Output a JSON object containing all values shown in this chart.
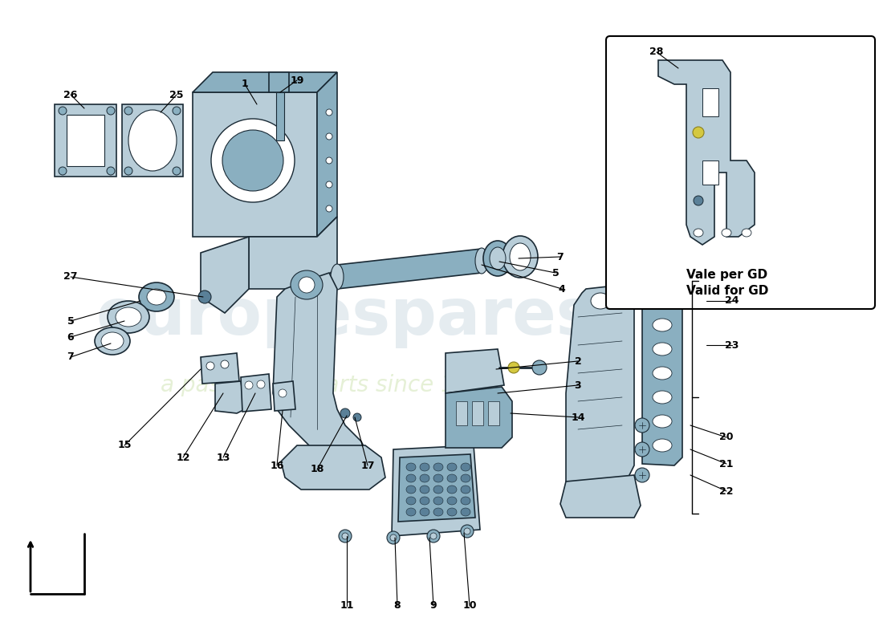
{
  "bg": "#ffffff",
  "cl": "#b8cdd8",
  "cm": "#8aafc0",
  "cd": "#5a8098",
  "co": "#1a2a35",
  "wm1": "#d0dde5",
  "wm2": "#d8e8c0",
  "it1": "Vale per GD",
  "it2": "Valid for GD",
  "figw": 11.0,
  "figh": 8.0,
  "dpi": 100
}
